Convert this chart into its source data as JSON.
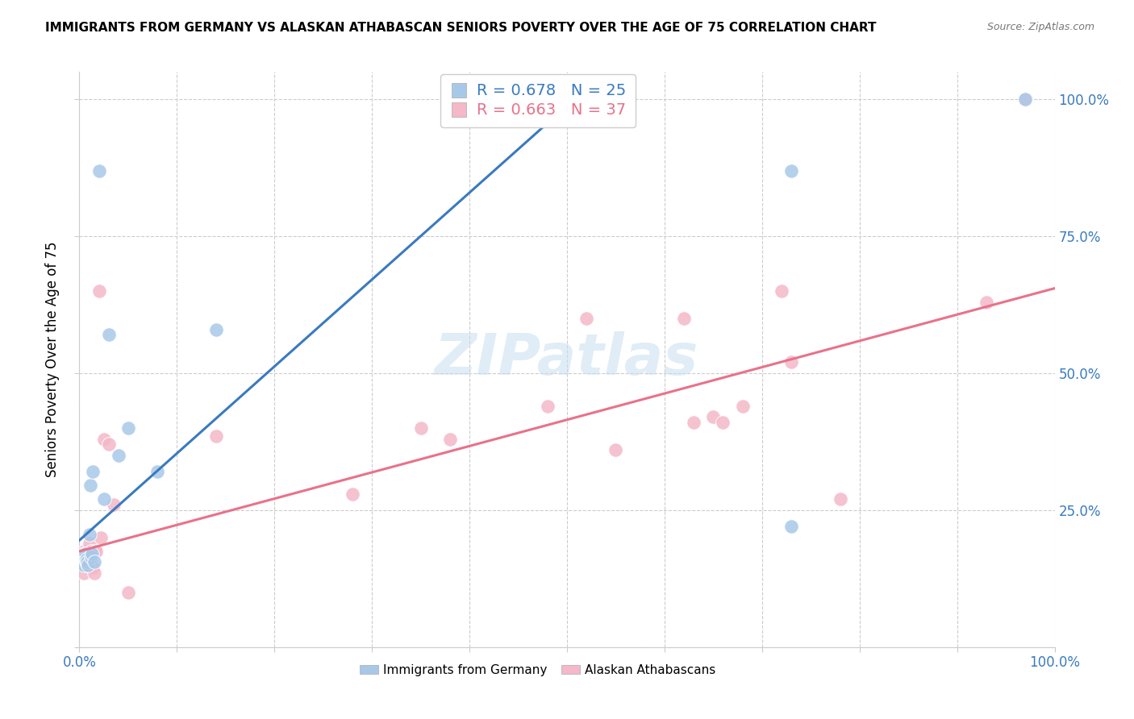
{
  "title": "IMMIGRANTS FROM GERMANY VS ALASKAN ATHABASCAN SENIORS POVERTY OVER THE AGE OF 75 CORRELATION CHART",
  "source": "Source: ZipAtlas.com",
  "ylabel": "Seniors Poverty Over the Age of 75",
  "ylabel_right_ticks": [
    "100.0%",
    "75.0%",
    "50.0%",
    "25.0%"
  ],
  "ylabel_right_vals": [
    1.0,
    0.75,
    0.5,
    0.25
  ],
  "legend_blue_r": "R = 0.678",
  "legend_blue_n": "N = 25",
  "legend_pink_r": "R = 0.663",
  "legend_pink_n": "N = 37",
  "blue_scatter_color": "#a8c8e8",
  "blue_line_color": "#3a7abf",
  "pink_scatter_color": "#f4b8c8",
  "pink_line_color": "#e8728a",
  "legend_blue_text": "#3a7abf",
  "legend_pink_text": "#e8728a",
  "right_axis_color": "#3a7abf",
  "bottom_axis_color": "#3a7abf",
  "watermark": "ZIPatlas",
  "blue_scatter_x": [
    0.005,
    0.005,
    0.005,
    0.005,
    0.006,
    0.007,
    0.007,
    0.008,
    0.009,
    0.01,
    0.011,
    0.012,
    0.013,
    0.014,
    0.015,
    0.02,
    0.025,
    0.03,
    0.04,
    0.05,
    0.08,
    0.14,
    0.73,
    0.73,
    0.97
  ],
  "blue_scatter_y": [
    0.17,
    0.16,
    0.155,
    0.15,
    0.17,
    0.155,
    0.16,
    0.155,
    0.15,
    0.205,
    0.295,
    0.165,
    0.17,
    0.32,
    0.155,
    0.87,
    0.27,
    0.57,
    0.35,
    0.4,
    0.32,
    0.58,
    0.22,
    0.87,
    1.0
  ],
  "pink_scatter_x": [
    0.005,
    0.005,
    0.005,
    0.007,
    0.008,
    0.009,
    0.01,
    0.011,
    0.012,
    0.013,
    0.014,
    0.015,
    0.016,
    0.017,
    0.02,
    0.022,
    0.025,
    0.03,
    0.035,
    0.05,
    0.14,
    0.28,
    0.35,
    0.38,
    0.48,
    0.52,
    0.55,
    0.62,
    0.63,
    0.65,
    0.66,
    0.68,
    0.72,
    0.73,
    0.78,
    0.93,
    0.97
  ],
  "pink_scatter_y": [
    0.175,
    0.16,
    0.135,
    0.16,
    0.155,
    0.155,
    0.19,
    0.17,
    0.175,
    0.145,
    0.145,
    0.135,
    0.175,
    0.175,
    0.65,
    0.2,
    0.38,
    0.37,
    0.26,
    0.1,
    0.385,
    0.28,
    0.4,
    0.38,
    0.44,
    0.6,
    0.36,
    0.6,
    0.41,
    0.42,
    0.41,
    0.44,
    0.65,
    0.52,
    0.27,
    0.63,
    1.0
  ],
  "blue_line_x": [
    0.0,
    0.52
  ],
  "blue_line_y": [
    0.195,
    1.02
  ],
  "pink_line_x": [
    0.0,
    1.0
  ],
  "pink_line_y": [
    0.175,
    0.655
  ],
  "xlim": [
    0.0,
    1.0
  ],
  "ylim": [
    0.0,
    1.05
  ],
  "xticks": [
    0.0,
    0.1,
    0.2,
    0.3,
    0.4,
    0.5,
    0.6,
    0.7,
    0.8,
    0.9,
    1.0
  ],
  "yticks": [
    0.0,
    0.25,
    0.5,
    0.75,
    1.0
  ]
}
